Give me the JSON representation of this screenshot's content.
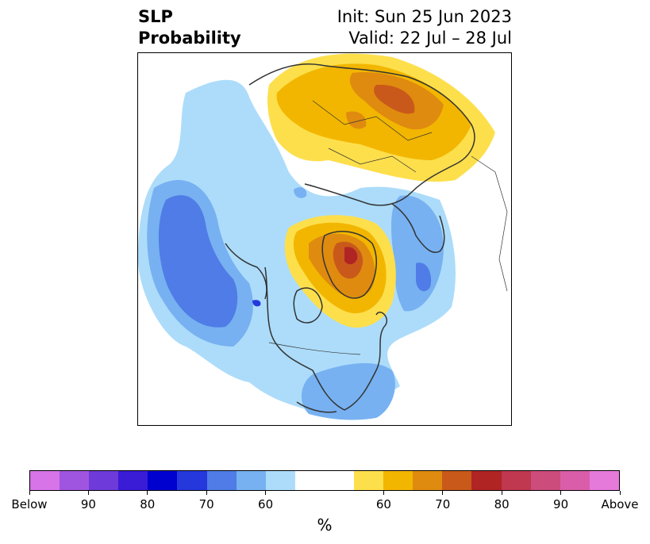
{
  "title": {
    "left_line1": "SLP",
    "left_line2": "Probability",
    "right_line1": "Init: Sun 25 Jun 2023",
    "right_line2": "Valid: 22 Jul – 28 Jul"
  },
  "colorbar": {
    "colors": [
      "#d674e8",
      "#a055e0",
      "#6e3ad9",
      "#3a1bd6",
      "#0000cf",
      "#2538dc",
      "#4f7ce6",
      "#77b1f1",
      "#acdcfa",
      "#ffffff",
      "#ffffff",
      "#fddf4c",
      "#f2b600",
      "#df8b0f",
      "#c9591a",
      "#b02424",
      "#c03750",
      "#cc4c7c",
      "#d95da8",
      "#e57adb"
    ],
    "tick_labels": [
      "Below",
      "90",
      "80",
      "70",
      "60",
      "60",
      "70",
      "80",
      "90",
      "Above"
    ],
    "unit": "%"
  },
  "map_colors": {
    "below_60": "#acdcfa",
    "below_70": "#77b1f1",
    "below_80": "#4f7ce6",
    "below_90": "#2538dc",
    "above_60": "#fddf4c",
    "above_70": "#f2b600",
    "above_80": "#df8b0f",
    "above_90": "#c9591a",
    "above_max": "#b02424",
    "coastline": "#333333"
  }
}
